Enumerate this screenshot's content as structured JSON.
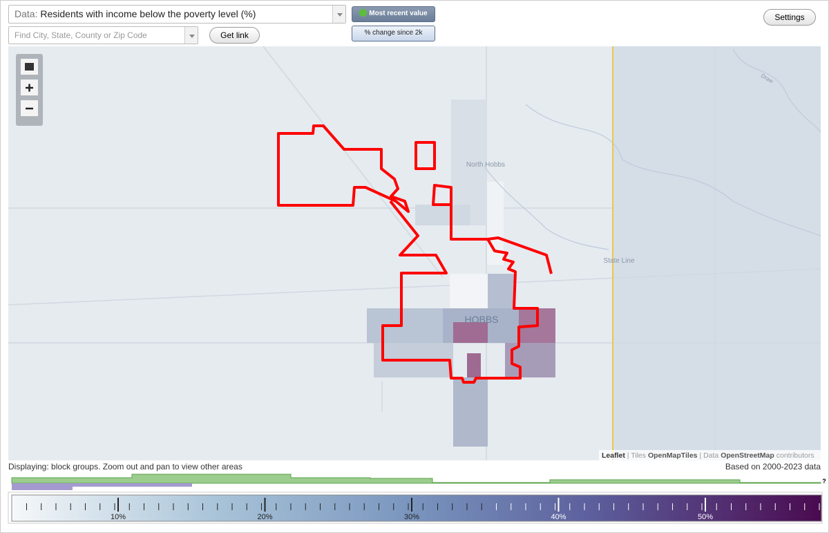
{
  "toolbar": {
    "data_label": "Data:",
    "data_value": "Residents with income below the poverty level (%)",
    "search_placeholder": "Find City, State, County or Zip Code",
    "get_link": "Get link",
    "most_recent": "Most recent value",
    "change": "% change since 2k",
    "settings": "Settings"
  },
  "map": {
    "labels": [
      "North Hobbs",
      "State Line",
      "HOBBS",
      "Draw"
    ],
    "attribution": [
      "Leaflet",
      "|",
      "Tiles",
      "OpenMapTiles",
      "|",
      "Data",
      "OpenStreetMap",
      "contributors"
    ]
  },
  "status": {
    "displaying": "Displaying: block groups. Zoom out and pan to view other areas",
    "based_on": "Based on 2000-2023 data"
  },
  "legend": {
    "ticks": [
      "10%",
      "20%",
      "30%",
      "40%",
      "50%"
    ],
    "help": "?"
  }
}
